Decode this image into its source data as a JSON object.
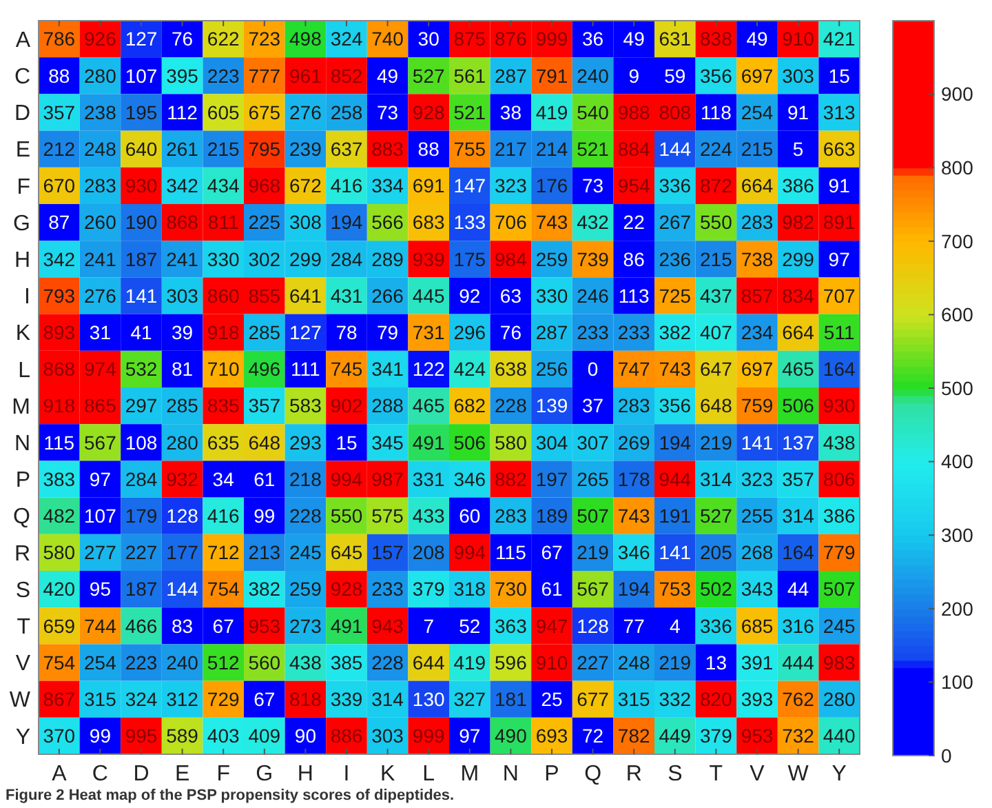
{
  "chart_data": {
    "type": "heatmap",
    "categories": [
      "A",
      "C",
      "D",
      "E",
      "F",
      "G",
      "H",
      "I",
      "K",
      "L",
      "M",
      "N",
      "P",
      "Q",
      "R",
      "S",
      "T",
      "V",
      "W",
      "Y"
    ],
    "y_categories": [
      "A",
      "C",
      "D",
      "E",
      "F",
      "G",
      "H",
      "I",
      "K",
      "L",
      "M",
      "N",
      "P",
      "Q",
      "R",
      "S",
      "T",
      "V",
      "W",
      "Y"
    ],
    "cells": [
      [
        786,
        926,
        127,
        76,
        622,
        723,
        498,
        324,
        740,
        30,
        875,
        876,
        999,
        36,
        49,
        631,
        838,
        49,
        910,
        421
      ],
      [
        88,
        280,
        107,
        395,
        223,
        777,
        961,
        852,
        49,
        527,
        561,
        287,
        791,
        240,
        9,
        59,
        356,
        697,
        303,
        15
      ],
      [
        357,
        238,
        195,
        112,
        605,
        675,
        276,
        258,
        73,
        928,
        521,
        38,
        419,
        540,
        988,
        808,
        118,
        254,
        91,
        313
      ],
      [
        212,
        248,
        640,
        261,
        215,
        795,
        239,
        637,
        883,
        88,
        755,
        217,
        214,
        521,
        884,
        144,
        224,
        215,
        5,
        663
      ],
      [
        670,
        283,
        930,
        342,
        434,
        968,
        672,
        416,
        334,
        691,
        147,
        323,
        176,
        73,
        954,
        336,
        872,
        664,
        386,
        91
      ],
      [
        87,
        260,
        190,
        868,
        811,
        225,
        308,
        194,
        566,
        683,
        133,
        706,
        743,
        432,
        22,
        267,
        550,
        283,
        982,
        891
      ],
      [
        342,
        241,
        187,
        241,
        330,
        302,
        299,
        284,
        289,
        939,
        175,
        984,
        259,
        739,
        86,
        236,
        215,
        738,
        299,
        97
      ],
      [
        793,
        276,
        141,
        303,
        860,
        855,
        641,
        431,
        266,
        445,
        92,
        63,
        330,
        246,
        113,
        725,
        437,
        857,
        834,
        707
      ],
      [
        893,
        31,
        41,
        39,
        918,
        285,
        127,
        78,
        79,
        731,
        296,
        76,
        287,
        233,
        233,
        382,
        407,
        234,
        664,
        511
      ],
      [
        868,
        974,
        532,
        81,
        710,
        496,
        111,
        745,
        341,
        122,
        424,
        638,
        256,
        0,
        747,
        743,
        647,
        697,
        465,
        164
      ],
      [
        918,
        865,
        297,
        285,
        835,
        357,
        583,
        902,
        288,
        465,
        682,
        228,
        139,
        37,
        283,
        356,
        648,
        759,
        506,
        930
      ],
      [
        115,
        567,
        108,
        280,
        635,
        648,
        293,
        15,
        345,
        491,
        506,
        580,
        304,
        307,
        269,
        194,
        219,
        141,
        137,
        438
      ],
      [
        383,
        97,
        284,
        932,
        34,
        61,
        218,
        994,
        987,
        331,
        346,
        882,
        197,
        265,
        178,
        944,
        314,
        323,
        357,
        806
      ],
      [
        482,
        107,
        179,
        128,
        416,
        99,
        228,
        550,
        575,
        433,
        60,
        283,
        189,
        507,
        743,
        191,
        527,
        255,
        314,
        386
      ],
      [
        580,
        277,
        227,
        177,
        712,
        213,
        245,
        645,
        157,
        208,
        994,
        115,
        67,
        219,
        346,
        141,
        205,
        268,
        164,
        779
      ],
      [
        420,
        95,
        187,
        144,
        754,
        382,
        259,
        928,
        233,
        379,
        318,
        730,
        61,
        567,
        194,
        753,
        502,
        343,
        44,
        507
      ],
      [
        659,
        744,
        466,
        83,
        67,
        953,
        273,
        491,
        943,
        7,
        52,
        363,
        947,
        128,
        77,
        4,
        336,
        685,
        316,
        245
      ],
      [
        754,
        254,
        223,
        240,
        512,
        560,
        438,
        385,
        228,
        644,
        419,
        596,
        910,
        227,
        248,
        219,
        13,
        391,
        444,
        983
      ],
      [
        867,
        315,
        324,
        312,
        729,
        67,
        818,
        339,
        314,
        130,
        327,
        181,
        25,
        677,
        315,
        332,
        820,
        393,
        762,
        280
      ],
      [
        370,
        99,
        995,
        589,
        403,
        409,
        90,
        886,
        303,
        999,
        97,
        490,
        693,
        72,
        782,
        449,
        379,
        953,
        732,
        440
      ]
    ],
    "data_labels": true,
    "clim": [
      0,
      1000
    ],
    "cticks": [
      0,
      100,
      200,
      300,
      400,
      500,
      600,
      700,
      800,
      900
    ],
    "annotations": [
      "Figure 2 Heat map of the PSP propensity scores of dipeptides."
    ]
  }
}
